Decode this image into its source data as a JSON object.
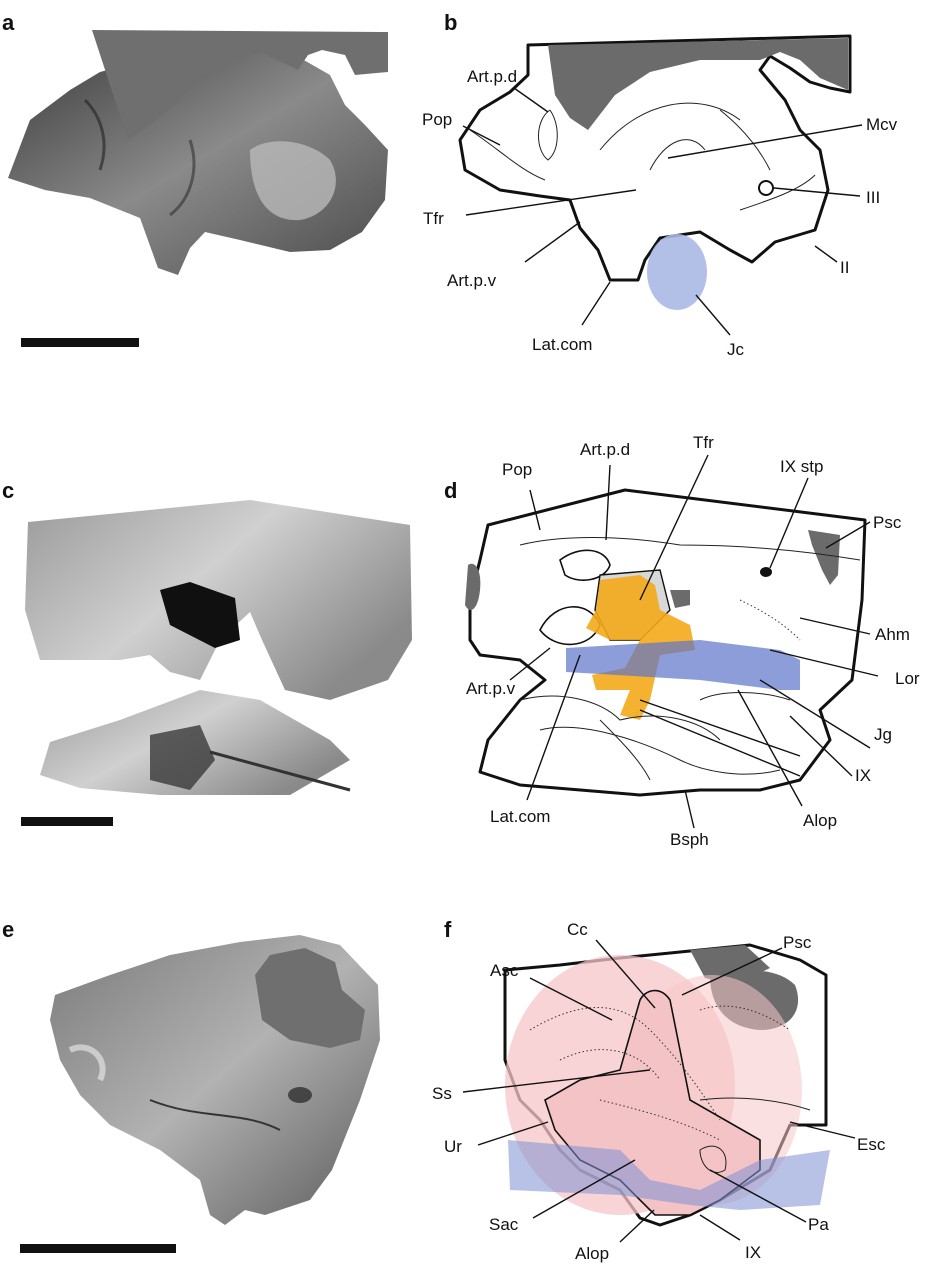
{
  "panels": {
    "a": {
      "letter": "a"
    },
    "b": {
      "letter": "b",
      "labels": {
        "art_p_d": "Art.p.d",
        "pop": "Pop",
        "mcv": "Mcv",
        "iii": "III",
        "tfr": "Tfr",
        "art_p_v": "Art.p.v",
        "ii": "II",
        "lat_com": "Lat.com",
        "jc": "Jc"
      }
    },
    "c": {
      "letter": "c"
    },
    "d": {
      "letter": "d",
      "labels": {
        "pop": "Pop",
        "art_p_d": "Art.p.d",
        "tfr": "Tfr",
        "ix_stp": "IX stp",
        "psc": "Psc",
        "ahm": "Ahm",
        "lor": "Lor",
        "art_p_v": "Art.p.v",
        "jg": "Jg",
        "ix": "IX",
        "lat_com": "Lat.com",
        "alop": "Alop",
        "bsph": "Bsph"
      }
    },
    "e": {
      "letter": "e"
    },
    "f": {
      "letter": "f",
      "labels": {
        "cc": "Cc",
        "psc": "Psc",
        "asc": "Asc",
        "ss": "Ss",
        "esc": "Esc",
        "ur": "Ur",
        "sac": "Sac",
        "pa": "Pa",
        "alop": "Alop",
        "ix": "IX"
      }
    }
  },
  "colors": {
    "jugular_canal": "#9fb0e0",
    "trigeminofacialis": "#f4a91a",
    "jugular_groove": "#6a7fd0",
    "labyrinth": "#f6c6c8",
    "matrix_gray": "#6b6b6b"
  }
}
